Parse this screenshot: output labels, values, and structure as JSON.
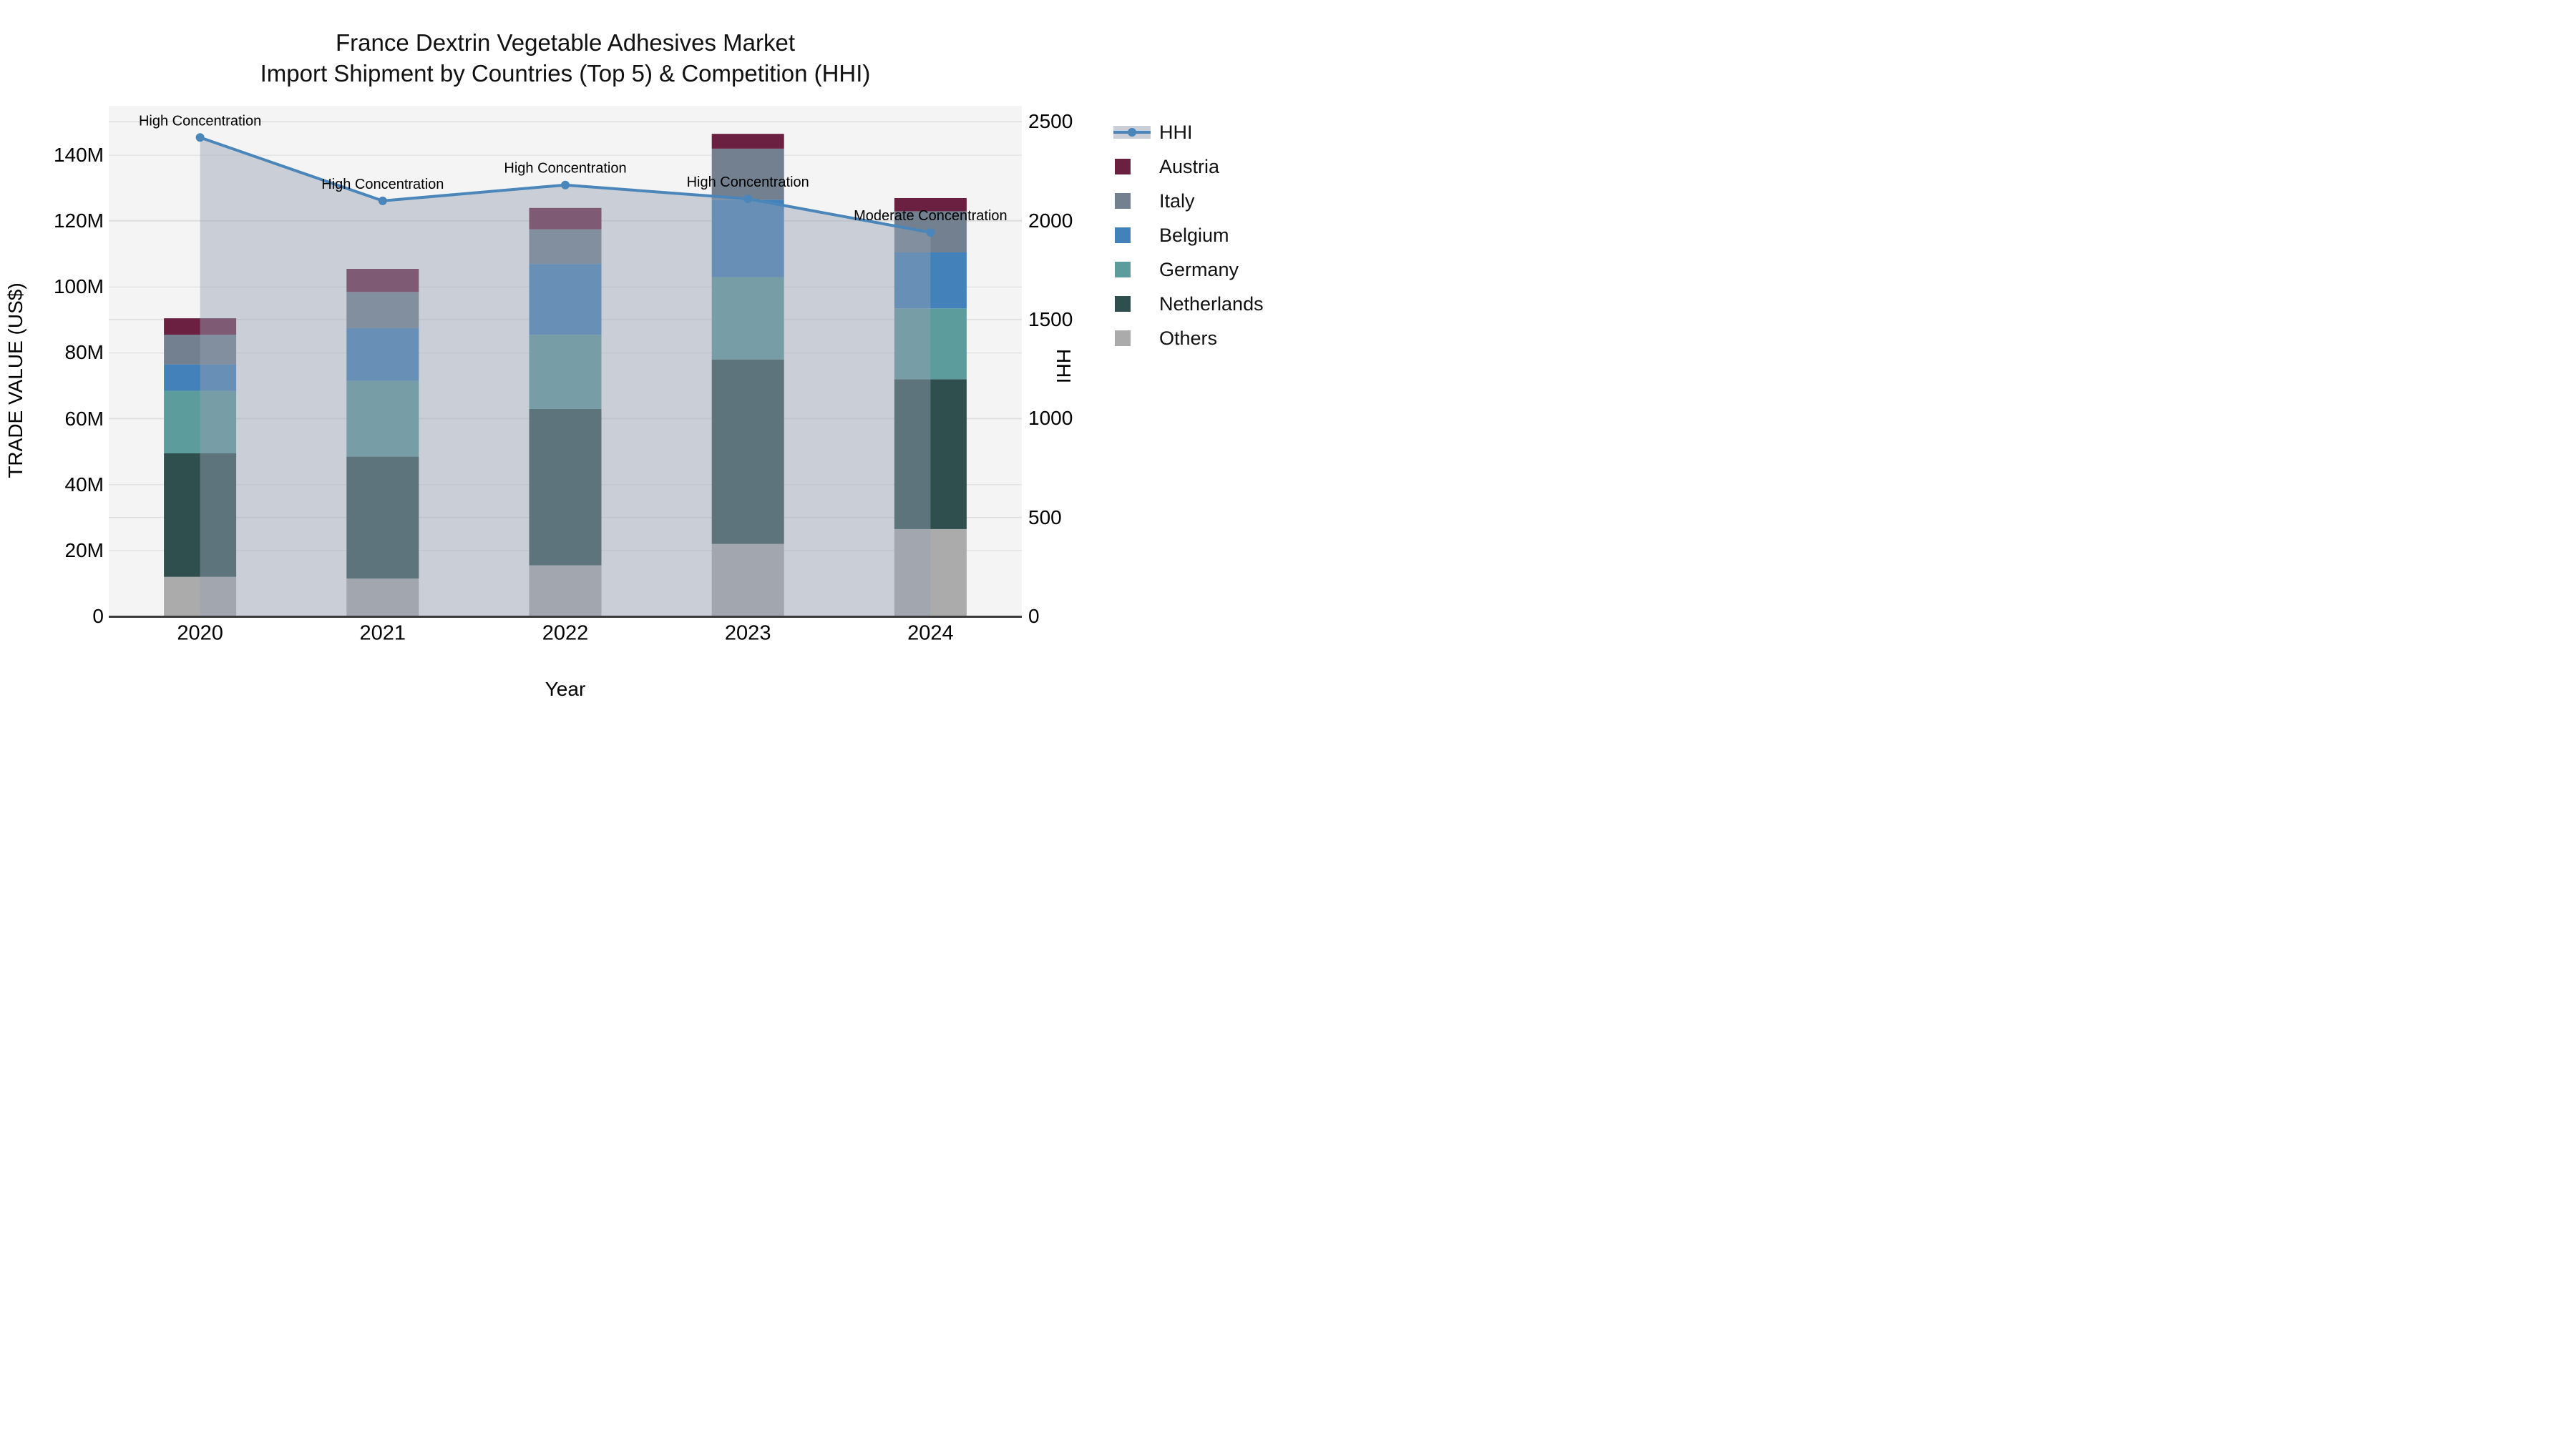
{
  "title": {
    "line1": "France Dextrin Vegetable Adhesives Market",
    "line2": "Import Shipment by Countries (Top 5) & Competition (HHI)"
  },
  "axes": {
    "x_title": "Year",
    "y_left_title": "TRADE VALUE (US$)",
    "y_right_title": "HHI",
    "y_left_ticks": [
      {
        "label": "0",
        "value": 0
      },
      {
        "label": "20M",
        "value": 20
      },
      {
        "label": "40M",
        "value": 40
      },
      {
        "label": "60M",
        "value": 60
      },
      {
        "label": "80M",
        "value": 80
      },
      {
        "label": "100M",
        "value": 100
      },
      {
        "label": "120M",
        "value": 120
      },
      {
        "label": "140M",
        "value": 140
      }
    ],
    "y_right_ticks": [
      {
        "label": "0",
        "value": 0
      },
      {
        "label": "500",
        "value": 500
      },
      {
        "label": "1000",
        "value": 1000
      },
      {
        "label": "1500",
        "value": 1500
      },
      {
        "label": "2000",
        "value": 2000
      },
      {
        "label": "2500",
        "value": 2500
      }
    ],
    "y_left_max_musd": 155,
    "y_right_max": 2580,
    "grid": true
  },
  "legend": {
    "position": "right-top-outside",
    "items": [
      {
        "label": "HHI",
        "type": "line",
        "color": "#4a86ba"
      },
      {
        "label": "Austria",
        "type": "square",
        "color": "#6b1f41"
      },
      {
        "label": "Italy",
        "type": "square",
        "color": "#72808f"
      },
      {
        "label": "Belgium",
        "type": "square",
        "color": "#4281ba"
      },
      {
        "label": "Germany",
        "type": "square",
        "color": "#5d9c9c"
      },
      {
        "label": "Netherlands",
        "type": "square",
        "color": "#2f4f4f"
      },
      {
        "label": "Others",
        "type": "square",
        "color": "#ababab"
      }
    ]
  },
  "chart_data": {
    "type": "bar",
    "subtype": "stacked-bars-with-line-overlay",
    "categories": [
      "2020",
      "2021",
      "2022",
      "2023",
      "2024"
    ],
    "units_left": "million US$",
    "stack_order_bottom_to_top": [
      "Others",
      "Netherlands",
      "Germany",
      "Belgium",
      "Italy",
      "Austria"
    ],
    "series": [
      {
        "name": "Others",
        "color": "#ababab",
        "values": [
          12.0,
          11.5,
          15.5,
          22.0,
          26.5
        ]
      },
      {
        "name": "Netherlands",
        "color": "#2f4f4f",
        "values": [
          37.5,
          37.0,
          47.5,
          56.0,
          45.5
        ]
      },
      {
        "name": "Germany",
        "color": "#5d9c9c",
        "values": [
          19.0,
          23.0,
          22.5,
          25.0,
          21.5
        ]
      },
      {
        "name": "Belgium",
        "color": "#4281ba",
        "values": [
          8.0,
          16.0,
          21.5,
          23.5,
          17.0
        ]
      },
      {
        "name": "Italy",
        "color": "#72808f",
        "values": [
          9.0,
          11.0,
          10.5,
          15.5,
          12.5
        ]
      },
      {
        "name": "Austria",
        "color": "#6b1f41",
        "values": [
          5.0,
          7.0,
          6.5,
          4.5,
          4.0
        ]
      }
    ],
    "bar_totals_musd": [
      90.5,
      105.5,
      124.0,
      146.5,
      127.0
    ],
    "line_series": {
      "name": "HHI",
      "axis": "right",
      "color": "#4a86ba",
      "area_fill": "rgba(150,161,180,0.45)",
      "values": [
        2420,
        2100,
        2180,
        2110,
        1940
      ]
    },
    "annotations": [
      "High Concentration",
      "High Concentration",
      "High Concentration",
      "High Concentration",
      "Moderate Concentration"
    ],
    "title": "France Dextrin Vegetable Adhesives Market Import Shipment by Countries (Top 5) & Competition (HHI)",
    "xlabel": "Year",
    "ylabel_left": "TRADE VALUE (US$)",
    "ylabel_right": "HHI",
    "ylim_left": [
      0,
      155
    ],
    "ylim_right": [
      0,
      2580
    ],
    "plot_background": "#f4f4f4",
    "gridline_color_left": "#e3e3e3",
    "gridline_color_right": "#dedede"
  }
}
